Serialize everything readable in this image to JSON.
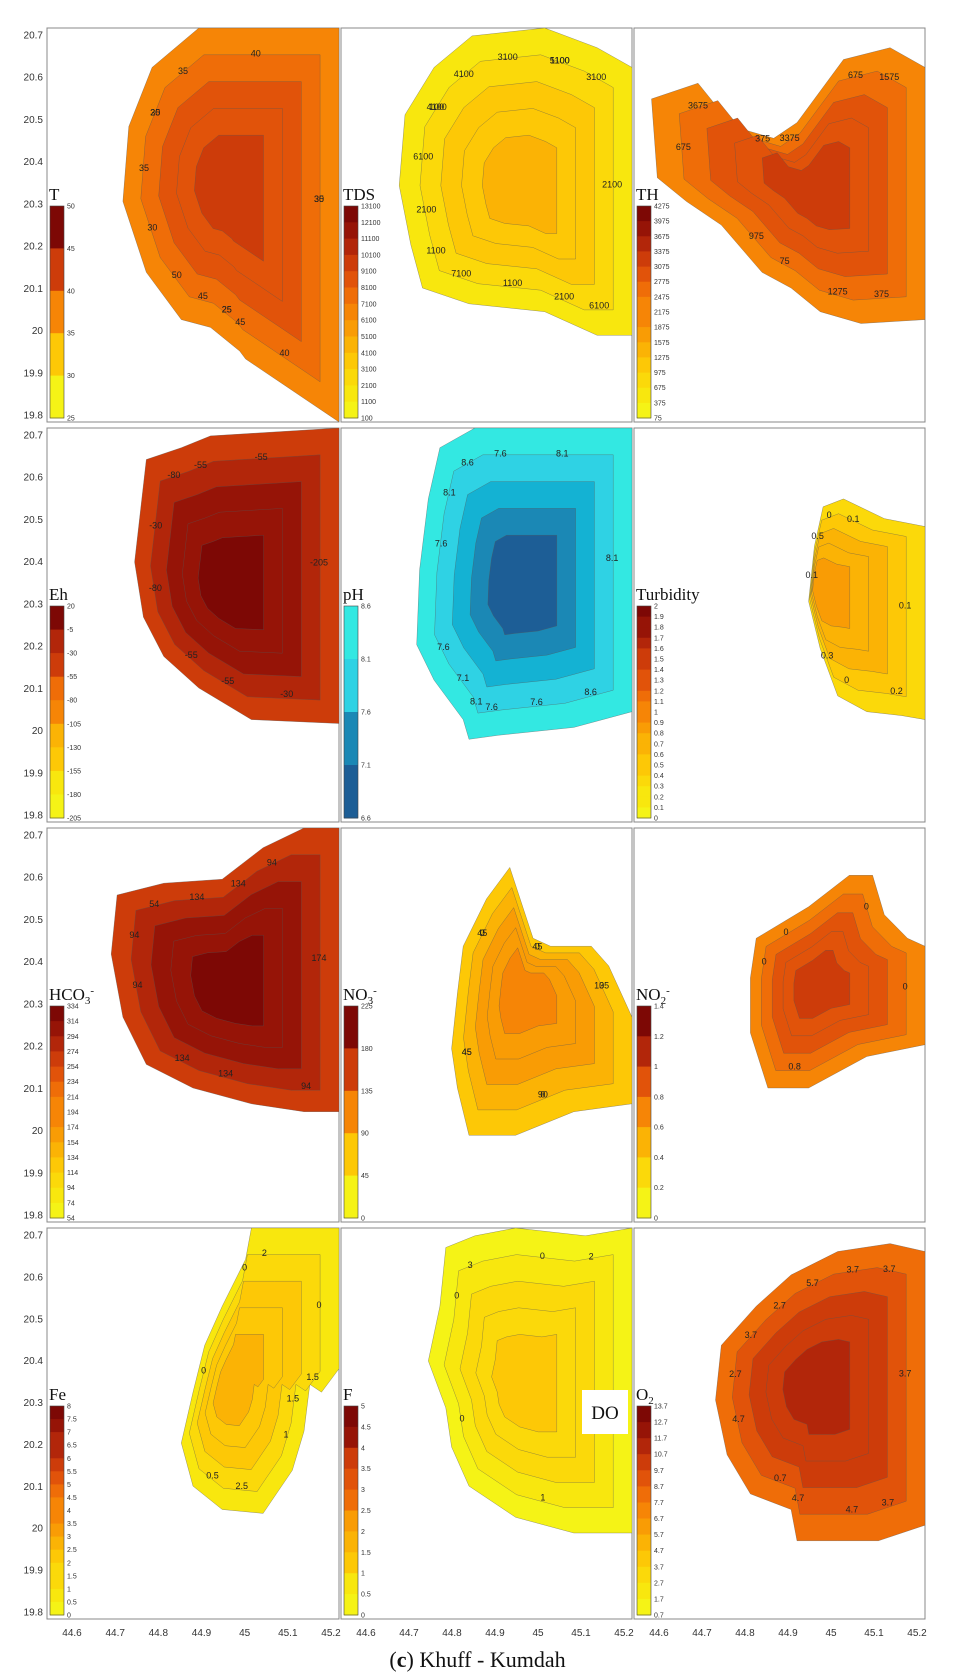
{
  "caption": {
    "letter": "c",
    "text": "Khuff - Kumdah"
  },
  "axes": {
    "y_ticks": [
      "20.7",
      "20.6",
      "20.5",
      "20.4",
      "20.3",
      "20.2",
      "20.1",
      "20",
      "19.9",
      "19.8"
    ],
    "x_ticks": [
      "44.6",
      "44.7",
      "44.8",
      "44.9",
      "45",
      "45.1",
      "45.2"
    ]
  },
  "palettes": {
    "warm": [
      "#f5f316",
      "#f8e70e",
      "#fbd90a",
      "#fdc806",
      "#fbb305",
      "#f99c05",
      "#f68506",
      "#ef6d08",
      "#e1530a",
      "#cd3c0a",
      "#b2260a",
      "#961407",
      "#7d0805"
    ],
    "cool": [
      "#1d5e96",
      "#1b88b5",
      "#14b2d3",
      "#2fd2e4",
      "#33e8e2",
      "#4af5e0"
    ],
    "fill_level": {
      "T": 6,
      "TDS": 1,
      "TH": 6,
      "Eh": 9,
      "pH": 3,
      "Turbidity": 2,
      "HCO3": 9,
      "NO3": 3,
      "NO2": 6,
      "Fe": 1,
      "F": 0,
      "O2": 7
    }
  },
  "panels": [
    {
      "id": "T",
      "label": "T",
      "sub": "",
      "scheme": "warm",
      "ticks": [
        "50",
        "45",
        "40",
        "35",
        "30",
        "25"
      ],
      "contours": [
        "30",
        "35",
        "25",
        "30",
        "35",
        "40",
        "45",
        "35",
        "40",
        "45",
        "50",
        "25",
        "30",
        "25"
      ]
    },
    {
      "id": "TDS",
      "label": "TDS",
      "sub": "",
      "scheme": "warm",
      "ticks": [
        "13100",
        "12100",
        "11100",
        "10100",
        "9100",
        "8100",
        "7100",
        "6100",
        "5100",
        "4100",
        "3100",
        "2100",
        "1100",
        "100"
      ],
      "contours": [
        "4100",
        "5100",
        "6100",
        "7100",
        "6100",
        "3100",
        "2100",
        "1100",
        "2100",
        "4100",
        "3100",
        "2100",
        "1100",
        "100",
        "1100"
      ]
    },
    {
      "id": "TH",
      "label": "TH",
      "sub": "",
      "scheme": "warm",
      "ticks": [
        "4275",
        "3975",
        "3675",
        "3375",
        "3075",
        "2775",
        "2475",
        "2175",
        "1875",
        "1575",
        "1275",
        "975",
        "675",
        "375",
        "75"
      ],
      "contours": [
        "3675",
        "3375",
        "1575",
        "1275",
        "975",
        "675",
        "375",
        "675",
        "375",
        "75"
      ]
    },
    {
      "id": "Eh",
      "label": "Eh",
      "sub": "",
      "scheme": "warm",
      "ticks": [
        "20",
        "-5",
        "-30",
        "-55",
        "-80",
        "-105",
        "-130",
        "-155",
        "-180",
        "-205"
      ],
      "contours": [
        "-80",
        "-205",
        "-55",
        "-30",
        "-55",
        "-55",
        "-80",
        "-55",
        "-30"
      ]
    },
    {
      "id": "pH",
      "label": "pH",
      "sub": "",
      "scheme": "cool",
      "ticks": [
        "8.6",
        "8.1",
        "7.6",
        "7.1",
        "6.6"
      ],
      "contours": [
        "8.6",
        "8.1",
        "7.6",
        "7.6",
        "8.1",
        "8.1",
        "7.6",
        "7.1",
        "7.6",
        "7.6",
        "8.6",
        "8.1"
      ]
    },
    {
      "id": "Turbidity",
      "label": "Turbidity",
      "sub": "",
      "scheme": "warm",
      "ticks": [
        "2",
        "1.9",
        "1.8",
        "1.7",
        "1.6",
        "1.5",
        "1.4",
        "1.3",
        "1.2",
        "1.1",
        "1",
        "0.9",
        "0.8",
        "0.7",
        "0.6",
        "0.5",
        "0.4",
        "0.3",
        "0.2",
        "0.1",
        "0"
      ],
      "contours": [
        "0",
        "0.1",
        "0",
        "0.1",
        "0.1",
        "0.2",
        "0.3",
        "0.5"
      ]
    },
    {
      "id": "HCO3",
      "label": "HCO",
      "sub": "3",
      "sup": "-",
      "scheme": "warm",
      "ticks": [
        "334",
        "314",
        "294",
        "274",
        "254",
        "234",
        "214",
        "194",
        "174",
        "154",
        "134",
        "114",
        "94",
        "74",
        "54"
      ],
      "contours": [
        "54",
        "94",
        "94",
        "134",
        "94",
        "134",
        "174",
        "134",
        "94",
        "134"
      ]
    },
    {
      "id": "NO3",
      "label": "NO",
      "sub": "3",
      "sup": "-",
      "scheme": "warm",
      "ticks": [
        "225",
        "180",
        "135",
        "90",
        "45",
        "0"
      ],
      "contours": [
        "0",
        "45",
        "0",
        "0",
        "45",
        "45",
        "0",
        "135",
        "90",
        "45",
        "0"
      ]
    },
    {
      "id": "NO2",
      "label": "NO",
      "sub": "2",
      "sup": "-",
      "scheme": "warm",
      "ticks": [
        "1.4",
        "1.2",
        "1",
        "0.8",
        "0.6",
        "0.4",
        "0.2",
        "0"
      ],
      "contours": [
        "0",
        "0",
        "0",
        "0.8",
        "0"
      ]
    },
    {
      "id": "Fe",
      "label": "Fe",
      "sub": "",
      "scheme": "warm",
      "ticks": [
        "8",
        "7.5",
        "7",
        "6.5",
        "6",
        "5.5",
        "5",
        "4.5",
        "4",
        "3.5",
        "3",
        "2.5",
        "2",
        "1.5",
        "1",
        "0.5",
        "0"
      ],
      "contours": [
        "2",
        "1.5",
        "1",
        "0.5",
        "0",
        "0",
        "0",
        "1.5",
        "2.5"
      ]
    },
    {
      "id": "F",
      "label": "F",
      "sub": "",
      "scheme": "warm",
      "ticks": [
        "5",
        "4.5",
        "4",
        "3.5",
        "3",
        "2.5",
        "2",
        "1.5",
        "1",
        "0.5",
        "0"
      ],
      "contours": [
        "3",
        "2",
        "1",
        "0",
        "0",
        "0"
      ]
    },
    {
      "id": "O2",
      "label": "O",
      "sub": "2",
      "scheme": "warm",
      "boxed": "DO",
      "ticks": [
        "13.7",
        "12.7",
        "11.7",
        "10.7",
        "9.7",
        "8.7",
        "7.7",
        "6.7",
        "5.7",
        "4.7",
        "3.7",
        "2.7",
        "1.7",
        "0.7"
      ],
      "contours": [
        "3.7",
        "3.7",
        "3.7",
        "4.7",
        "4.7",
        "2.7",
        "3.7",
        "4.7",
        "0.7",
        "2.7",
        "5.7",
        "3.7"
      ]
    }
  ]
}
